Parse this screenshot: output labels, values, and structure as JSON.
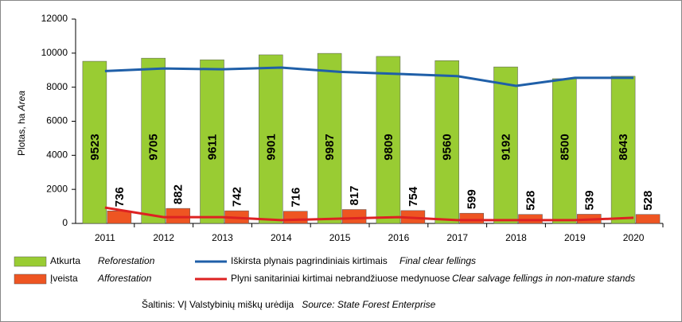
{
  "chart_data": {
    "type": "bar-line",
    "y_label": "Plotas, ha",
    "y_label_en": "Area",
    "categories": [
      "2011",
      "2012",
      "2013",
      "2014",
      "2015",
      "2016",
      "2017",
      "2018",
      "2019",
      "2020"
    ],
    "ylim": [
      0,
      12000
    ],
    "yticks": [
      0,
      2000,
      4000,
      6000,
      8000,
      10000,
      12000
    ],
    "series": [
      {
        "name": "Atkurta",
        "name_en": "Reforestation",
        "kind": "bar",
        "color": "#99cc33",
        "values": [
          9523,
          9705,
          9611,
          9901,
          9987,
          9809,
          9560,
          9192,
          8500,
          8643
        ]
      },
      {
        "name": "Įveista",
        "name_en": "Afforestation",
        "kind": "bar",
        "color": "#ee5522",
        "values": [
          736,
          882,
          742,
          716,
          817,
          754,
          599,
          528,
          539,
          528
        ]
      },
      {
        "name": "Iškirsta plynais pagrindiniais kirtimais",
        "name_en": "Final clear fellings",
        "kind": "line",
        "color": "#1f5fa8",
        "values": [
          8950,
          9100,
          9050,
          9150,
          8900,
          8780,
          8650,
          8080,
          8550,
          8550
        ]
      },
      {
        "name": "Plyni sanitariniai kirtimai nebrandžiuose medynuose",
        "name_en": "Clear salvage fellings in non-mature stands",
        "kind": "line",
        "color": "#dd2222",
        "values": [
          930,
          370,
          370,
          190,
          280,
          370,
          190,
          190,
          190,
          330
        ]
      }
    ],
    "source": "Šaltinis: VĮ Valstybinių miškų urėdija",
    "source_en": "Source: State Forest Enterprise"
  }
}
